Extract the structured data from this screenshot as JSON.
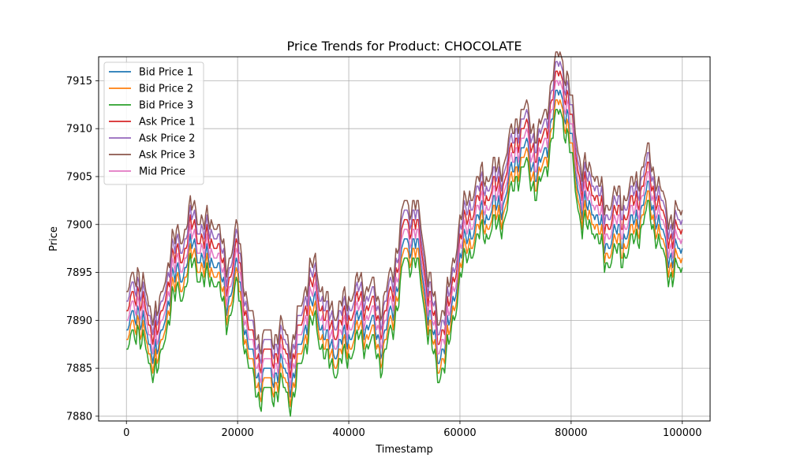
{
  "chart_data": {
    "type": "line",
    "title": "Price Trends for Product: CHOCOLATE",
    "xlabel": "Timestamp",
    "ylabel": "Price",
    "xlim": [
      -5000,
      105000
    ],
    "ylim": [
      7879.5,
      7917.5
    ],
    "xticks": [
      0,
      20000,
      40000,
      60000,
      80000,
      100000
    ],
    "xtick_labels": [
      "0",
      "20000",
      "40000",
      "60000",
      "80000",
      "100000"
    ],
    "yticks": [
      7880,
      7885,
      7890,
      7895,
      7900,
      7905,
      7910,
      7915
    ],
    "ytick_labels": [
      "7880",
      "7885",
      "7890",
      "7895",
      "7900",
      "7905",
      "7910",
      "7915"
    ],
    "grid": true,
    "legend_position": "top-left",
    "series": [
      {
        "name": "Bid Price 1",
        "color": "#1f77b4",
        "offset": -1.0
      },
      {
        "name": "Bid Price 2",
        "color": "#ff7f0e",
        "offset": -2.0
      },
      {
        "name": "Bid Price 3",
        "color": "#2ca02c",
        "offset": -3.0
      },
      {
        "name": "Ask Price 1",
        "color": "#d62728",
        "offset": 1.0
      },
      {
        "name": "Ask Price 2",
        "color": "#9467bd",
        "offset": 2.0
      },
      {
        "name": "Ask Price 3",
        "color": "#8c564b",
        "offset": 3.0
      },
      {
        "name": "Mid Price",
        "color": "#e377c2",
        "offset": 0.0
      }
    ],
    "mid_price": {
      "x": [
        0,
        2000,
        4000,
        6000,
        8000,
        10000,
        12000,
        14000,
        16000,
        18000,
        20000,
        22000,
        24000,
        26000,
        28000,
        30000,
        32000,
        34000,
        36000,
        38000,
        40000,
        42000,
        44000,
        46000,
        48000,
        50000,
        52000,
        54000,
        56000,
        58000,
        60000,
        62000,
        64000,
        66000,
        68000,
        70000,
        72000,
        74000,
        76000,
        78000,
        80000,
        82000,
        84000,
        86000,
        88000,
        90000,
        92000,
        94000,
        96000,
        98000,
        100000
      ],
      "y": [
        7889.5,
        7892.5,
        7888.5,
        7888,
        7895,
        7896,
        7899,
        7897,
        7897.5,
        7893,
        7896.5,
        7888,
        7885,
        7885.5,
        7886,
        7884.5,
        7890.5,
        7893,
        7888.5,
        7888,
        7889.5,
        7891,
        7890.5,
        7888.5,
        7892.5,
        7899,
        7899.5,
        7893,
        7887,
        7890,
        7897.5,
        7900.5,
        7902,
        7902.5,
        7903.5,
        7908,
        7909,
        7906,
        7910.5,
        7915.5,
        7910,
        7902.5,
        7903,
        7899,
        7900,
        7900,
        7902,
        7904.5,
        7900.5,
        7897.5,
        7898.5
      ]
    }
  }
}
